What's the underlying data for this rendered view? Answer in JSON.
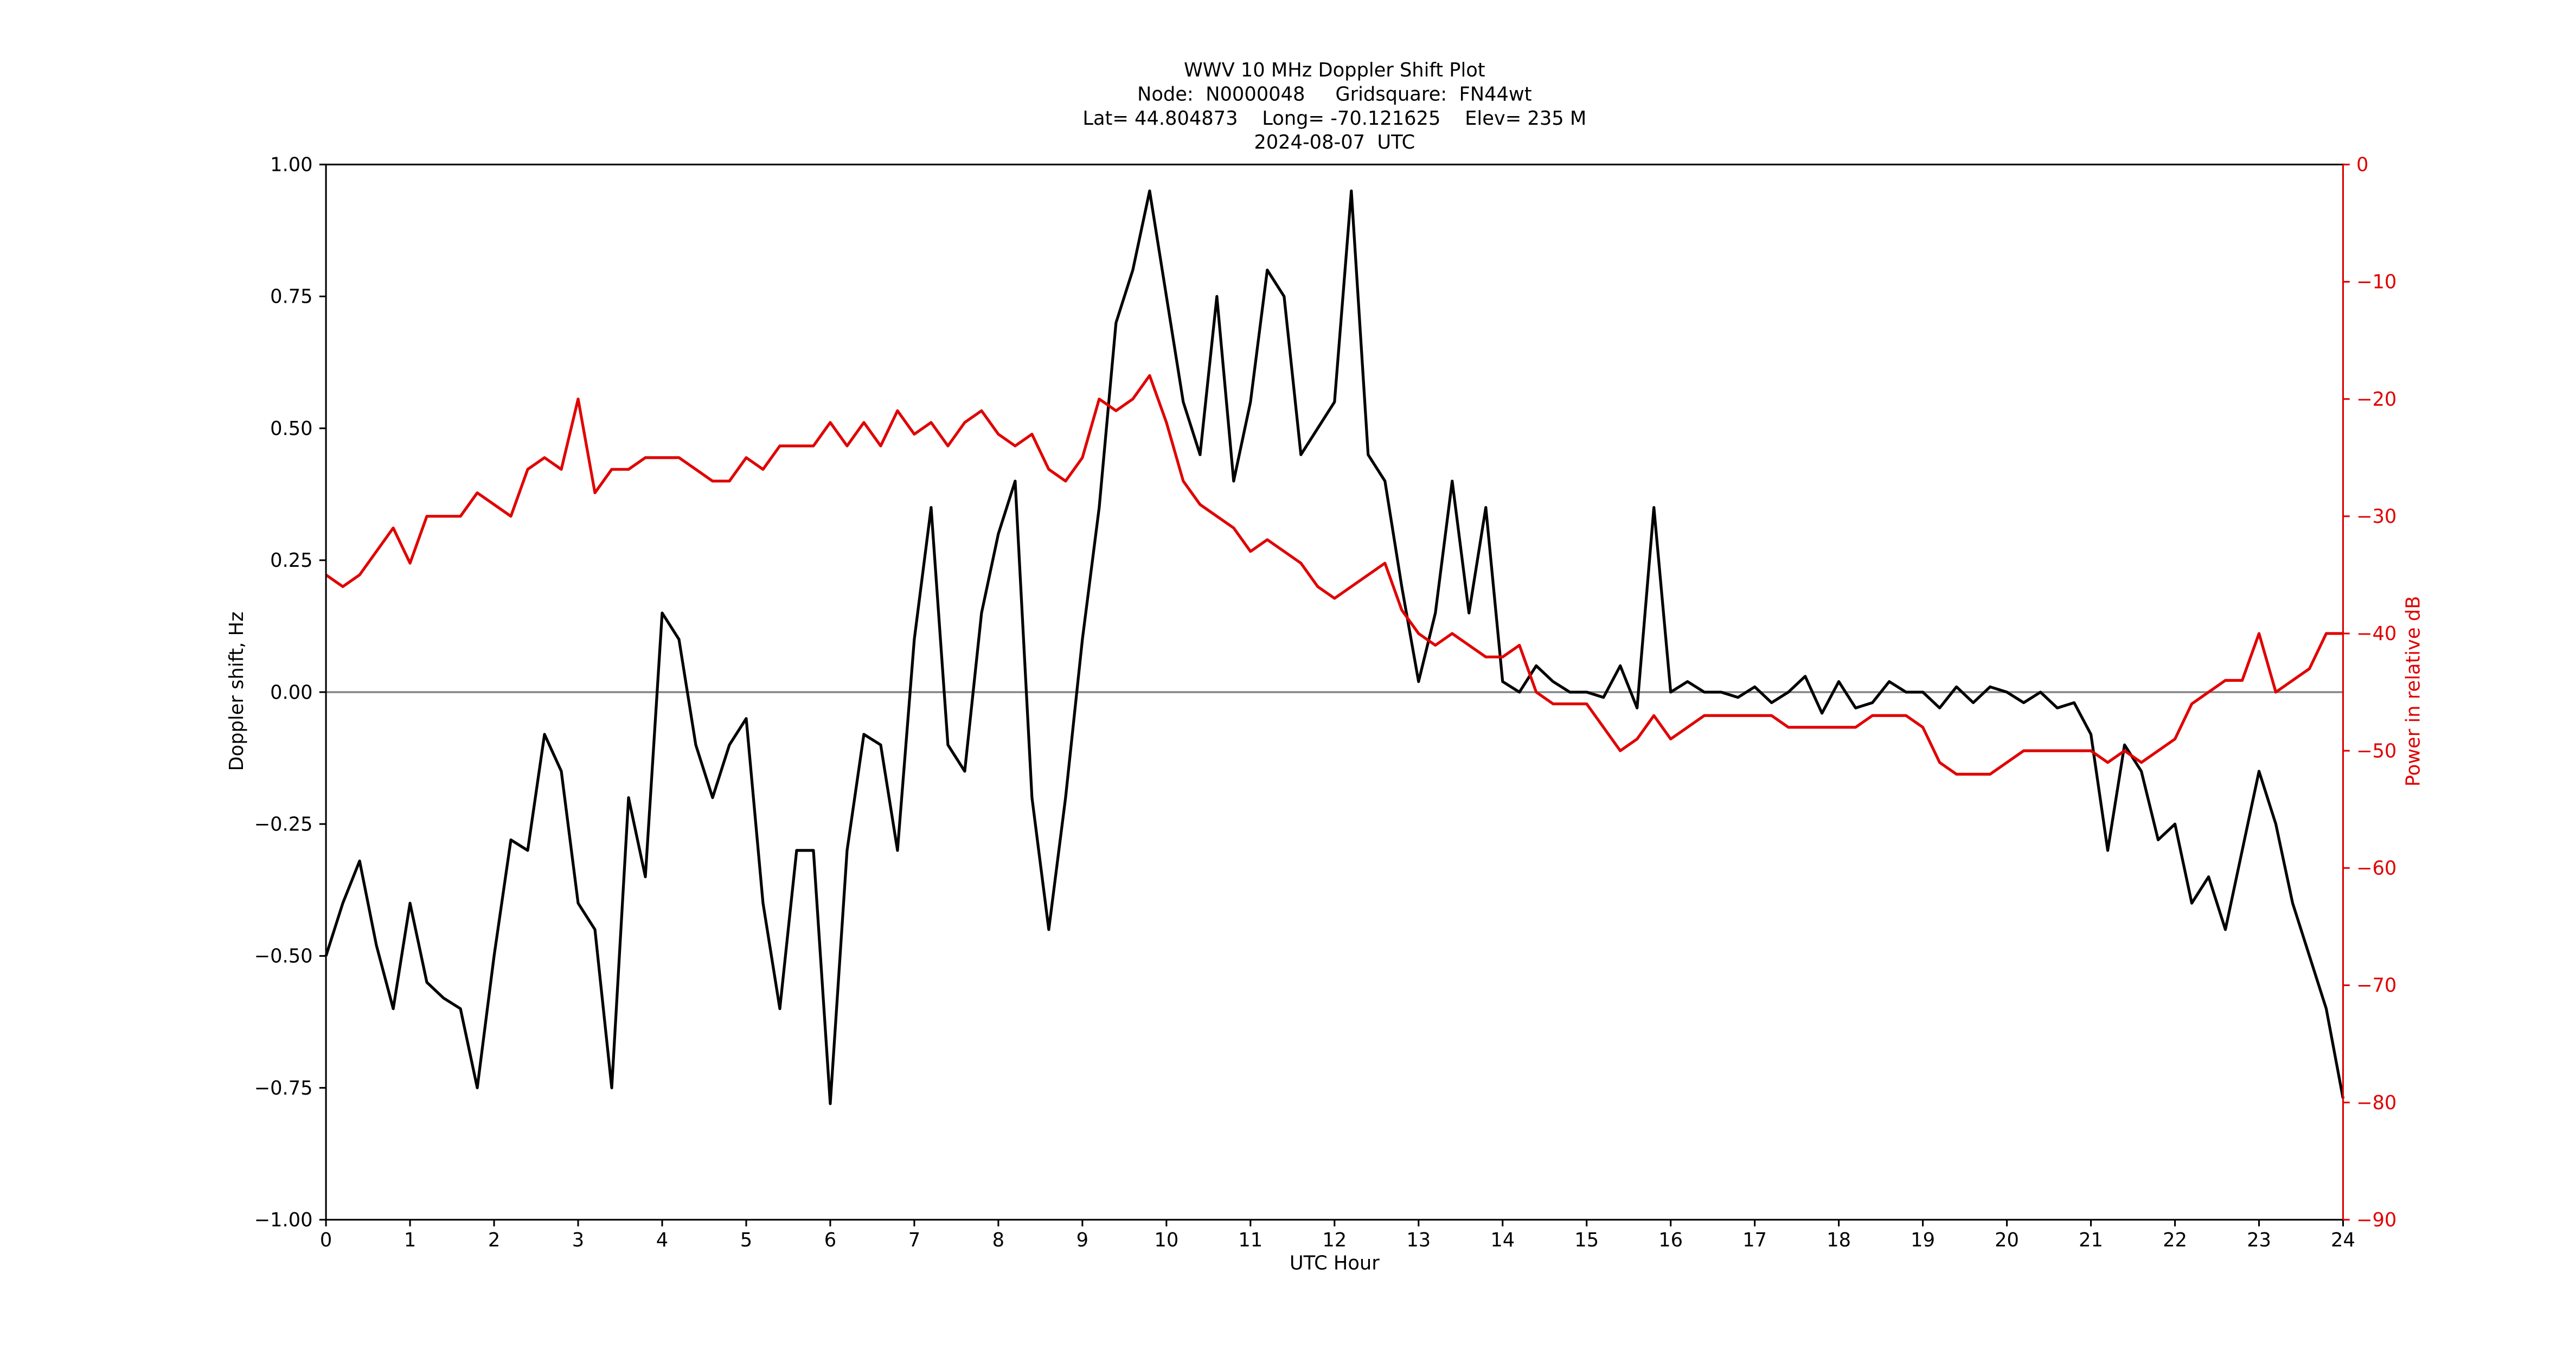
{
  "chart_data": {
    "type": "line",
    "title": [
      "WWV 10 MHz Doppler Shift Plot",
      "Node:  N0000048     Gridsquare:  FN44wt",
      "Lat= 44.804873    Long= -70.121625    Elev= 235 M",
      "2024-08-07  UTC"
    ],
    "xlabel": "UTC Hour",
    "ylabel": "Doppler shift, Hz",
    "y2label": "Power in relative dB",
    "y2color": "#e00000",
    "hline": 0,
    "x": [
      0,
      0.2,
      0.4,
      0.6,
      0.8,
      1,
      1.2,
      1.4,
      1.6,
      1.8,
      2,
      2.2,
      2.4,
      2.6,
      2.8,
      3,
      3.2,
      3.4,
      3.6,
      3.8,
      4,
      4.2,
      4.4,
      4.6,
      4.8,
      5,
      5.2,
      5.4,
      5.6,
      5.8,
      6,
      6.2,
      6.4,
      6.6,
      6.8,
      7,
      7.2,
      7.4,
      7.6,
      7.8,
      8,
      8.2,
      8.4,
      8.6,
      8.8,
      9,
      9.2,
      9.4,
      9.6,
      9.8,
      10,
      10.2,
      10.4,
      10.6,
      10.8,
      11,
      11.2,
      11.4,
      11.6,
      11.8,
      12,
      12.2,
      12.4,
      12.6,
      12.8,
      13,
      13.2,
      13.4,
      13.6,
      13.8,
      14,
      14.2,
      14.4,
      14.6,
      14.8,
      15,
      15.2,
      15.4,
      15.6,
      15.8,
      16,
      16.2,
      16.4,
      16.6,
      16.8,
      17,
      17.2,
      17.4,
      17.6,
      17.8,
      18,
      18.2,
      18.4,
      18.6,
      18.8,
      19,
      19.2,
      19.4,
      19.6,
      19.8,
      20,
      20.2,
      20.4,
      20.6,
      20.8,
      21,
      21.2,
      21.4,
      21.6,
      21.8,
      22,
      22.2,
      22.4,
      22.6,
      22.8,
      23,
      23.2,
      23.4,
      23.6,
      23.8,
      24
    ],
    "series": [
      {
        "color": "#000000",
        "axis": "y",
        "values": [
          -0.5,
          -0.4,
          -0.32,
          -0.48,
          -0.6,
          -0.4,
          -0.55,
          -0.58,
          -0.6,
          -0.75,
          -0.5,
          -0.28,
          -0.3,
          -0.08,
          -0.15,
          -0.4,
          -0.45,
          -0.75,
          -0.2,
          -0.35,
          0.15,
          0.1,
          -0.1,
          -0.2,
          -0.1,
          -0.05,
          -0.4,
          -0.6,
          -0.3,
          -0.3,
          -0.78,
          -0.3,
          -0.08,
          -0.1,
          -0.3,
          0.1,
          0.35,
          -0.1,
          -0.15,
          0.15,
          0.3,
          0.4,
          -0.2,
          -0.45,
          -0.2,
          0.1,
          0.35,
          0.7,
          0.8,
          0.95,
          0.75,
          0.55,
          0.45,
          0.75,
          0.4,
          0.55,
          0.8,
          0.75,
          0.45,
          0.5,
          0.55,
          0.95,
          0.45,
          0.4,
          0.2,
          0.02,
          0.15,
          0.4,
          0.15,
          0.35,
          0.02,
          0,
          0.05,
          0.02,
          0,
          0,
          -0.01,
          0.05,
          -0.03,
          0.35,
          0,
          0.02,
          0,
          0,
          -0.01,
          0.01,
          -0.02,
          0,
          0.03,
          -0.04,
          0.02,
          -0.03,
          -0.02,
          0.02,
          0,
          0,
          -0.03,
          0.01,
          -0.02,
          0.01,
          0,
          -0.02,
          0,
          -0.03,
          -0.02,
          -0.08,
          -0.3,
          -0.1,
          -0.15,
          -0.28,
          -0.25,
          -0.4,
          -0.35,
          -0.45,
          -0.3,
          -0.15,
          -0.25,
          -0.4,
          -0.5,
          -0.6,
          -0.77
        ]
      },
      {
        "color": "#e00000",
        "axis": "y2",
        "values": [
          -35,
          -36,
          -35,
          -33,
          -31,
          -34,
          -30,
          -30,
          -30,
          -28,
          -29,
          -30,
          -26,
          -25,
          -26,
          -20,
          -28,
          -26,
          -26,
          -25,
          -25,
          -25,
          -26,
          -27,
          -27,
          -25,
          -26,
          -24,
          -24,
          -24,
          -22,
          -24,
          -22,
          -24,
          -21,
          -23,
          -22,
          -24,
          -22,
          -21,
          -23,
          -24,
          -23,
          -26,
          -27,
          -25,
          -20,
          -21,
          -20,
          -18,
          -22,
          -27,
          -29,
          -30,
          -31,
          -33,
          -32,
          -33,
          -34,
          -36,
          -37,
          -36,
          -35,
          -34,
          -38,
          -40,
          -41,
          -40,
          -41,
          -42,
          -42,
          -41,
          -45,
          -46,
          -46,
          -46,
          -48,
          -50,
          -49,
          -47,
          -49,
          -48,
          -47,
          -47,
          -47,
          -47,
          -47,
          -48,
          -48,
          -48,
          -48,
          -48,
          -47,
          -47,
          -47,
          -48,
          -51,
          -52,
          -52,
          -52,
          -51,
          -50,
          -50,
          -50,
          -50,
          -50,
          -51,
          -50,
          -51,
          -50,
          -49,
          -46,
          -45,
          -44,
          -44,
          -40,
          -45,
          -44,
          -43,
          -40,
          -40
        ]
      }
    ],
    "xlim": [
      0,
      24
    ],
    "xticks": [
      0,
      1,
      2,
      3,
      4,
      5,
      6,
      7,
      8,
      9,
      10,
      11,
      12,
      13,
      14,
      15,
      16,
      17,
      18,
      19,
      20,
      21,
      22,
      23,
      24
    ],
    "ylim": [
      -1,
      1
    ],
    "yticks": [
      {
        "value": -1,
        "label": "−1.00"
      },
      {
        "value": -0.75,
        "label": "−0.75"
      },
      {
        "value": -0.5,
        "label": "−0.50"
      },
      {
        "value": -0.25,
        "label": "−0.25"
      },
      {
        "value": 0,
        "label": "0.00"
      },
      {
        "value": 0.25,
        "label": "0.25"
      },
      {
        "value": 0.5,
        "label": "0.50"
      },
      {
        "value": 0.75,
        "label": "0.75"
      },
      {
        "value": 1,
        "label": "1.00"
      }
    ],
    "y2lim": [
      -90,
      0
    ],
    "y2ticks": [
      {
        "value": -90,
        "label": "−90"
      },
      {
        "value": -80,
        "label": "−80"
      },
      {
        "value": -70,
        "label": "−70"
      },
      {
        "value": -60,
        "label": "−60"
      },
      {
        "value": -50,
        "label": "−50"
      },
      {
        "value": -40,
        "label": "−40"
      },
      {
        "value": -30,
        "label": "−30"
      },
      {
        "value": -20,
        "label": "−20"
      },
      {
        "value": -10,
        "label": "−10"
      },
      0
    ]
  }
}
